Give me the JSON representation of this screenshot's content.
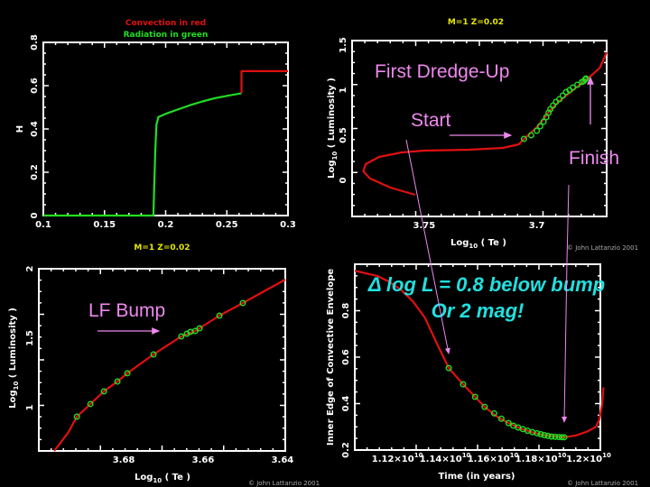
{
  "colors": {
    "convection": "#e01010",
    "radiation": "#22dd22",
    "title": "#e6e600",
    "annotation": "#ee88ee",
    "highlight": "#22e0e0",
    "frame": "#ffffff"
  },
  "annotations": {
    "first_dredge_up": "First Dredge-Up",
    "start": "Start",
    "finish": "Finish",
    "lf_bump": "LF Bump",
    "delta_line1": "Δ log L = 0.8 below bump",
    "delta_line2": "Or  2 mag!",
    "copyright": "© John Lattanzio 2001"
  },
  "chart_data": [
    {
      "type": "line",
      "title_lines": [
        {
          "text": "Convection in red",
          "color": "#e01010"
        },
        {
          "text": "Radiation in green",
          "color": "#22dd22"
        }
      ],
      "xlabel": {
        "base": "",
        "sub": "",
        "rest": ""
      },
      "ylabel": {
        "base": "H",
        "sub": "",
        "rest": ""
      },
      "xlim": [
        0.1,
        0.3
      ],
      "ylim": [
        0,
        0.8
      ],
      "xticks": [
        {
          "v": 0.1,
          "label": "0.1"
        },
        {
          "v": 0.15,
          "label": "0.15"
        },
        {
          "v": 0.2,
          "label": "0.2"
        },
        {
          "v": 0.25,
          "label": "0.25"
        },
        {
          "v": 0.3,
          "label": "0.3"
        }
      ],
      "yticks": [
        {
          "v": 0,
          "label": "0"
        },
        {
          "v": 0.2,
          "label": "0.2"
        },
        {
          "v": 0.4,
          "label": "0.4"
        },
        {
          "v": 0.6,
          "label": "0.6"
        },
        {
          "v": 0.8,
          "label": "0.8"
        }
      ],
      "series": [
        {
          "color": "#22dd22",
          "points": [
            [
              0.1,
              0
            ],
            [
              0.19,
              0
            ],
            [
              0.1905,
              0.1
            ],
            [
              0.1915,
              0.3
            ],
            [
              0.1925,
              0.42
            ],
            [
              0.194,
              0.455
            ],
            [
              0.2,
              0.47
            ],
            [
              0.21,
              0.49
            ],
            [
              0.22,
              0.51
            ],
            [
              0.23,
              0.527
            ],
            [
              0.24,
              0.542
            ],
            [
              0.25,
              0.553
            ],
            [
              0.262,
              0.565
            ]
          ]
        },
        {
          "color": "#e01010",
          "points": [
            [
              0.262,
              0.565
            ],
            [
              0.262,
              0.667
            ],
            [
              0.3,
              0.667
            ]
          ]
        }
      ],
      "markers": []
    },
    {
      "type": "line",
      "title_lines": [
        {
          "text": "M=1  Z=0.02",
          "color": "#e6e600"
        }
      ],
      "xlabel": {
        "base": "Log",
        "sub": "10",
        "rest": " ( Te )"
      },
      "ylabel": {
        "base": "Log",
        "sub": "10",
        "rest": " ( Luminosity )"
      },
      "xlim": [
        3.782,
        3.669
      ],
      "ylim": [
        -0.4,
        1.55
      ],
      "xticks": [
        {
          "v": 3.75,
          "label": "3.75"
        },
        {
          "v": 3.7,
          "label": "3.7"
        }
      ],
      "yticks": [
        {
          "v": 0,
          "label": "0"
        },
        {
          "v": 0.5,
          "label": "0.5"
        },
        {
          "v": 1,
          "label": "1"
        },
        {
          "v": 1.5,
          "label": "1.5"
        }
      ],
      "series": [
        {
          "color": "#e01010",
          "points": [
            [
              3.754,
              -0.16
            ],
            [
              3.765,
              -0.08
            ],
            [
              3.774,
              0.02
            ],
            [
              3.777,
              0.1
            ],
            [
              3.776,
              0.18
            ],
            [
              3.77,
              0.26
            ],
            [
              3.76,
              0.31
            ],
            [
              3.75,
              0.33
            ],
            [
              3.73,
              0.34
            ],
            [
              3.715,
              0.36
            ],
            [
              3.708,
              0.4
            ],
            [
              3.7057,
              0.46
            ],
            [
              3.703,
              0.52
            ],
            [
              3.7,
              0.59
            ],
            [
              3.697,
              0.68
            ],
            [
              3.694,
              0.78
            ],
            [
              3.69,
              0.88
            ],
            [
              3.686,
              0.96
            ],
            [
              3.682,
              1.04
            ],
            [
              3.678,
              1.12
            ],
            [
              3.675,
              1.18
            ],
            [
              3.672,
              1.25
            ],
            [
              3.669,
              1.42
            ]
          ]
        }
      ],
      "markers": [
        [
          3.7057,
          0.46
        ],
        [
          3.7025,
          0.5
        ],
        [
          3.7,
          0.55
        ],
        [
          3.6985,
          0.6
        ],
        [
          3.697,
          0.65
        ],
        [
          3.6958,
          0.7
        ],
        [
          3.6948,
          0.75
        ],
        [
          3.694,
          0.79
        ],
        [
          3.6928,
          0.83
        ],
        [
          3.6915,
          0.87
        ],
        [
          3.69,
          0.9
        ],
        [
          3.6885,
          0.94
        ],
        [
          3.687,
          0.98
        ],
        [
          3.6855,
          1.0
        ],
        [
          3.684,
          1.03
        ],
        [
          3.682,
          1.06
        ],
        [
          3.68,
          1.09
        ],
        [
          3.6792,
          1.1
        ],
        [
          3.6785,
          1.12
        ],
        [
          3.6782,
          1.13
        ]
      ],
      "copyright": "© John Lattanzio 2001"
    },
    {
      "type": "line",
      "title_lines": [
        {
          "text": "M=1  Z=0.02",
          "color": "#e6e600"
        }
      ],
      "xlabel": {
        "base": "Log",
        "sub": "10",
        "rest": " ( Te )"
      },
      "ylabel": {
        "base": "Log",
        "sub": "10",
        "rest": " ( Luminosity )"
      },
      "xlim": [
        3.7014,
        3.6393
      ],
      "ylim": [
        0.688,
        2
      ],
      "xticks": [
        {
          "v": 3.68,
          "label": "3.68"
        },
        {
          "v": 3.66,
          "label": "3.66"
        },
        {
          "v": 3.64,
          "label": "3.64"
        }
      ],
      "yticks": [
        {
          "v": 1,
          "label": "1"
        },
        {
          "v": 1.5,
          "label": "1.5"
        },
        {
          "v": 2,
          "label": "2"
        }
      ],
      "series": [
        {
          "color": "#e01010",
          "points": [
            [
              3.6975,
              0.688
            ],
            [
              3.694,
              0.82
            ],
            [
              3.6918,
              0.935
            ],
            [
              3.6884,
              1.026
            ],
            [
              3.685,
              1.117
            ],
            [
              3.6816,
              1.188
            ],
            [
              3.6791,
              1.247
            ],
            [
              3.6725,
              1.383
            ],
            [
              3.6655,
              1.513
            ],
            [
              3.662,
              1.552
            ],
            [
              3.6559,
              1.662
            ],
            [
              3.65,
              1.753
            ],
            [
              3.6393,
              1.922
            ]
          ]
        }
      ],
      "markers": [
        [
          3.6918,
          0.935
        ],
        [
          3.6884,
          1.026
        ],
        [
          3.685,
          1.117
        ],
        [
          3.6816,
          1.188
        ],
        [
          3.6791,
          1.247
        ],
        [
          3.6725,
          1.383
        ],
        [
          3.6655,
          1.513
        ],
        [
          3.6641,
          1.532
        ],
        [
          3.6632,
          1.545
        ],
        [
          3.662,
          1.552
        ],
        [
          3.6609,
          1.571
        ],
        [
          3.6559,
          1.662
        ],
        [
          3.65,
          1.753
        ]
      ],
      "copyright": "© John Lattanzio 2001"
    },
    {
      "type": "line",
      "title_lines": [],
      "xlabel": {
        "base": "Time (in years)",
        "sub": "",
        "rest": ""
      },
      "ylabel": {
        "base": "Inner Edge of Convective Envelope",
        "sub": "",
        "rest": ""
      },
      "x_units": "1e10 years",
      "xlim": [
        1.1007,
        1.2034
      ],
      "ylim": [
        0.2,
        1.0
      ],
      "xticks": [
        {
          "v": 1.12,
          "label": "1.12×10",
          "exp": "10"
        },
        {
          "v": 1.14,
          "label": "1.14×10",
          "exp": "10"
        },
        {
          "v": 1.16,
          "label": "1.16×10",
          "exp": "10"
        },
        {
          "v": 1.18,
          "label": "1.18×10",
          "exp": "10"
        },
        {
          "v": 1.2,
          "label": "1.2×10",
          "exp": "10"
        }
      ],
      "yticks": [
        {
          "v": 0.2,
          "label": "0.2"
        },
        {
          "v": 0.4,
          "label": "0.4"
        },
        {
          "v": 0.6,
          "label": "0.6"
        },
        {
          "v": 0.8,
          "label": "0.8"
        }
      ],
      "series": [
        {
          "color": "#e01010",
          "points": [
            [
              1.1007,
              0.972
            ],
            [
              1.11,
              0.95
            ],
            [
              1.115,
              0.925
            ],
            [
              1.12,
              0.89
            ],
            [
              1.125,
              0.84
            ],
            [
              1.13,
              0.77
            ],
            [
              1.135,
              0.66
            ],
            [
              1.14,
              0.553
            ],
            [
              1.146,
              0.483
            ],
            [
              1.151,
              0.429
            ],
            [
              1.155,
              0.386
            ],
            [
              1.16,
              0.345
            ],
            [
              1.165,
              0.316
            ],
            [
              1.17,
              0.293
            ],
            [
              1.175,
              0.276
            ],
            [
              1.18,
              0.264
            ],
            [
              1.1883,
              0.255
            ],
            [
              1.193,
              0.262
            ],
            [
              1.198,
              0.28
            ],
            [
              1.2015,
              0.3
            ],
            [
              1.203,
              0.33
            ],
            [
              1.2042,
              0.4
            ],
            [
              1.2047,
              0.47
            ]
          ]
        }
      ],
      "markers": [
        [
          1.14,
          0.553
        ],
        [
          1.146,
          0.483
        ],
        [
          1.151,
          0.429
        ],
        [
          1.155,
          0.386
        ],
        [
          1.159,
          0.358
        ],
        [
          1.162,
          0.335
        ],
        [
          1.165,
          0.316
        ],
        [
          1.167,
          0.305
        ],
        [
          1.169,
          0.297
        ],
        [
          1.171,
          0.29
        ],
        [
          1.173,
          0.283
        ],
        [
          1.175,
          0.277
        ],
        [
          1.177,
          0.272
        ],
        [
          1.1785,
          0.268
        ],
        [
          1.18,
          0.264
        ],
        [
          1.1815,
          0.261
        ],
        [
          1.183,
          0.258
        ],
        [
          1.1845,
          0.257
        ],
        [
          1.186,
          0.256
        ],
        [
          1.1873,
          0.255
        ],
        [
          1.1883,
          0.255
        ]
      ],
      "copyright": "© John Lattanzio 2001"
    }
  ]
}
